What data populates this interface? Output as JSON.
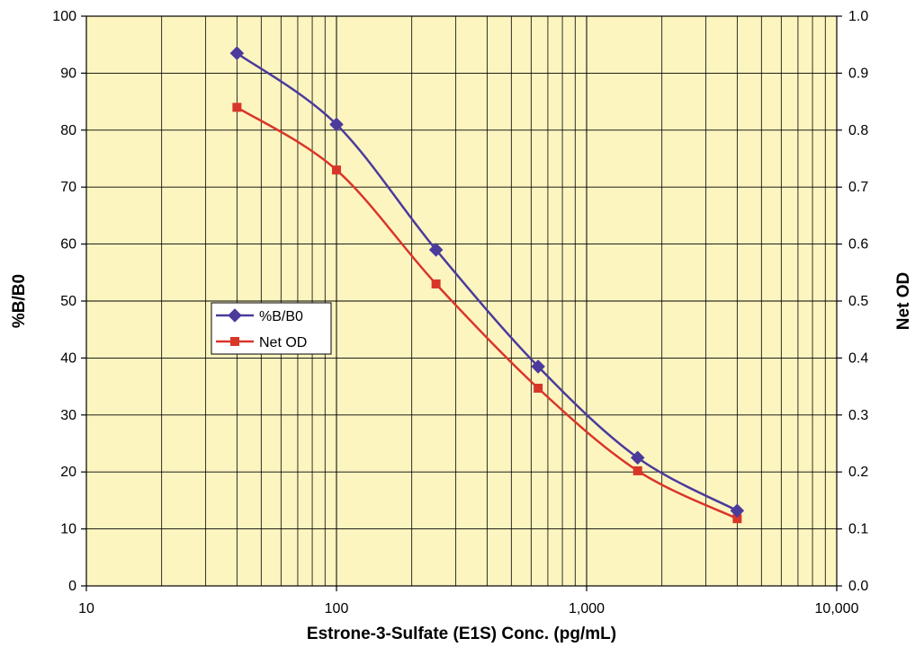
{
  "chart_data": {
    "type": "line",
    "x_scale": "log",
    "x": [
      40,
      100,
      250,
      640,
      1600,
      4000
    ],
    "xlim": [
      10,
      10000
    ],
    "xticks": [
      10,
      100,
      1000,
      10000
    ],
    "xtick_labels": [
      "10",
      "100",
      "1,000",
      "10,000"
    ],
    "xlabel": "Estrone-3-Sulfate (E1S) Conc. (pg/mL)",
    "ylabel": "%B/B0",
    "ylim": [
      0,
      100
    ],
    "yticks": [
      0,
      10,
      20,
      30,
      40,
      50,
      60,
      70,
      80,
      90,
      100
    ],
    "ytick_labels": [
      "0",
      "10",
      "20",
      "30",
      "40",
      "50",
      "60",
      "70",
      "80",
      "90",
      "100"
    ],
    "y2label": "Net OD",
    "y2lim": [
      0,
      1
    ],
    "y2ticks": [
      0,
      0.1,
      0.2,
      0.3,
      0.4,
      0.5,
      0.6,
      0.7,
      0.8,
      0.9,
      1.0
    ],
    "y2tick_labels": [
      "0.0",
      "0.1",
      "0.2",
      "0.3",
      "0.4",
      "0.5",
      "0.6",
      "0.7",
      "0.8",
      "0.9",
      "1.0"
    ],
    "grid": true,
    "plot_background": "#fdf5c0",
    "legend_position": "left-center",
    "series": [
      {
        "name": "%B/B0",
        "axis": "left",
        "marker": "diamond",
        "color": "#4b3b9c",
        "values": [
          93.5,
          81,
          59,
          38.5,
          22.5,
          13.2
        ]
      },
      {
        "name": "Net OD",
        "axis": "right",
        "marker": "square",
        "color": "#d9362a",
        "values": [
          0.84,
          0.73,
          0.53,
          0.347,
          0.202,
          0.118
        ]
      }
    ]
  }
}
